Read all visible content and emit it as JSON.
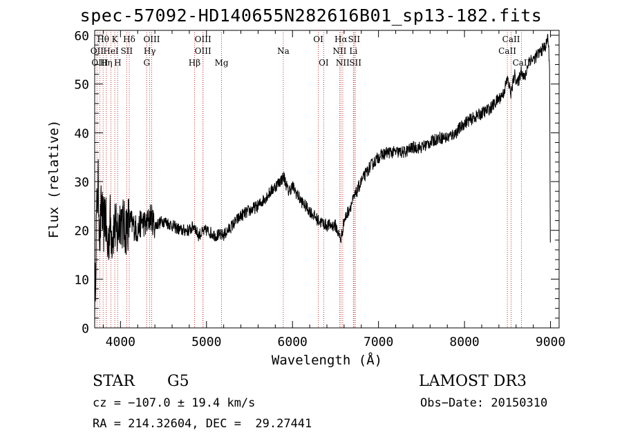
{
  "chart_data": {
    "type": "line",
    "title": "spec-57092-HD140655N282616B01_sp13-182.fits",
    "xlabel": "Wavelength (Å)",
    "ylabel": "Flux (relative)",
    "xlim": [
      3700,
      9100
    ],
    "ylim": [
      0,
      61
    ],
    "xticks": [
      4000,
      5000,
      6000,
      7000,
      8000,
      9000
    ],
    "yticks": [
      0,
      10,
      20,
      30,
      40,
      50,
      60
    ],
    "grid": false,
    "series": [
      {
        "name": "spectrum",
        "x": [
          3700,
          3720,
          3740,
          3760,
          3780,
          3800,
          3820,
          3850,
          3880,
          3900,
          3930,
          3960,
          4000,
          4050,
          4100,
          4150,
          4200,
          4250,
          4300,
          4350,
          4400,
          4500,
          4600,
          4700,
          4800,
          4860,
          4900,
          5000,
          5100,
          5200,
          5300,
          5400,
          5500,
          5600,
          5700,
          5800,
          5850,
          5900,
          5950,
          6000,
          6100,
          6200,
          6300,
          6400,
          6500,
          6563,
          6600,
          6650,
          6700,
          6800,
          6900,
          7000,
          7100,
          7200,
          7300,
          7400,
          7500,
          7600,
          7700,
          7800,
          7900,
          8000,
          8100,
          8200,
          8300,
          8400,
          8450,
          8500,
          8542,
          8580,
          8620,
          8662,
          8700,
          8750,
          8800,
          8850,
          8900,
          8950,
          8970,
          8990,
          9000
        ],
        "y": [
          2,
          22,
          30,
          18,
          26,
          20,
          24,
          16,
          22,
          19,
          21,
          19,
          23,
          20,
          22,
          21,
          20,
          22,
          21,
          23,
          21,
          22,
          21,
          20,
          20,
          21,
          19,
          20,
          19,
          19,
          21,
          23,
          24,
          25,
          27,
          29,
          30,
          31,
          28,
          29,
          26,
          24,
          22,
          21,
          21,
          18,
          22,
          24,
          26,
          30,
          33,
          35,
          36,
          36,
          36,
          37,
          37,
          38,
          39,
          39,
          40,
          42,
          43,
          44,
          45,
          47,
          48,
          51,
          48,
          52,
          50,
          53,
          51,
          55,
          55,
          56,
          57,
          58,
          60,
          53,
          8
        ]
      }
    ],
    "spectral_lines": [
      {
        "label": "Hθ",
        "x": 3798,
        "row": 0
      },
      {
        "label": "K",
        "x": 3934,
        "row": 0
      },
      {
        "label": "Hδ",
        "x": 4102,
        "row": 0
      },
      {
        "label": "OIII",
        "x": 4363,
        "row": 0
      },
      {
        "label": "OIII",
        "x": 4959,
        "row": 0
      },
      {
        "label": "OI",
        "x": 6300,
        "row": 0
      },
      {
        "label": "Hα",
        "x": 6563,
        "row": 0
      },
      {
        "label": "SII",
        "x": 6716,
        "row": 0
      },
      {
        "label": "CaII",
        "x": 8542,
        "row": 0
      },
      {
        "label": "OII",
        "x": 3727,
        "row": 1
      },
      {
        "label": "HeI",
        "x": 3889,
        "row": 1
      },
      {
        "label": "SII",
        "x": 4072,
        "row": 1
      },
      {
        "label": "Hγ",
        "x": 4340,
        "row": 1
      },
      {
        "label": "OIII",
        "x": 4959,
        "row": 1
      },
      {
        "label": "Na",
        "x": 5893,
        "row": 1
      },
      {
        "label": "NII",
        "x": 6548,
        "row": 1
      },
      {
        "label": "Li",
        "x": 6708,
        "row": 1
      },
      {
        "label": "CaII",
        "x": 8498,
        "row": 1
      },
      {
        "label": "OIII",
        "x": 3760,
        "row": 2
      },
      {
        "label": "Hη",
        "x": 3835,
        "row": 2
      },
      {
        "label": "H",
        "x": 3968,
        "row": 2
      },
      {
        "label": "G",
        "x": 4305,
        "row": 2
      },
      {
        "label": "Hβ",
        "x": 4861,
        "row": 2
      },
      {
        "label": "Mg",
        "x": 5175,
        "row": 2
      },
      {
        "label": "OI",
        "x": 6363,
        "row": 2
      },
      {
        "label": "NII",
        "x": 6584,
        "row": 2
      },
      {
        "label": "SII",
        "x": 6731,
        "row": 2
      },
      {
        "label": "CaII",
        "x": 8662,
        "row": 2
      }
    ]
  },
  "info": {
    "object_type": "STAR",
    "subclass": "G5",
    "survey": "LAMOST DR3",
    "velocity": "cz = −107.0 ± 19.4 km/s",
    "obs_date": "Obs−Date: 20150310",
    "coords": "RA = 214.32604, DEC =  29.27441"
  }
}
